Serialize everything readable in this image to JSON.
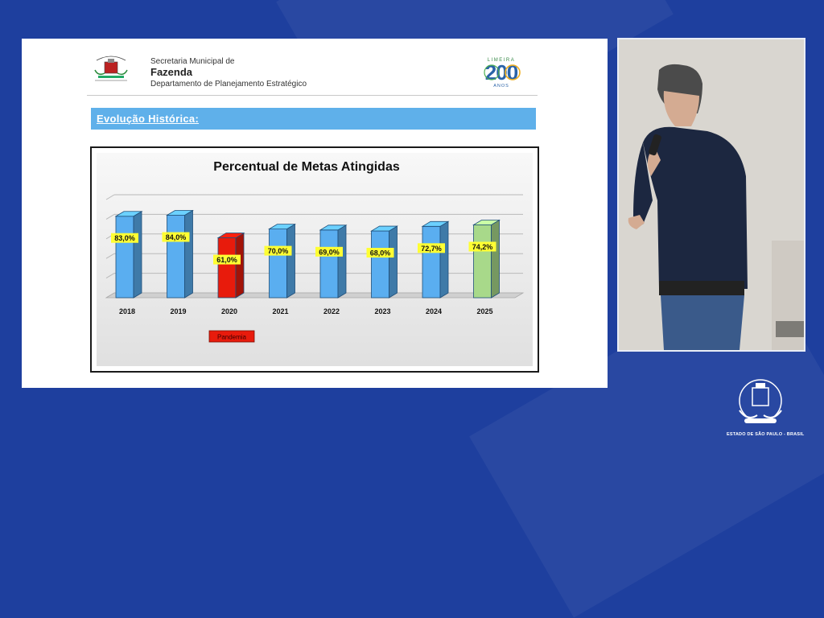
{
  "header": {
    "line1": "Secretaria Municipal de",
    "line2": "Fazenda",
    "line3": "Departamento de Planejamento Estratégico",
    "anniv_top": "LIMEIRA",
    "anniv_number": "200",
    "anniv_bottom": "ANOS"
  },
  "section": {
    "title": "Evolução Histórica:"
  },
  "chart_data": {
    "type": "bar",
    "title": "Percentual de Metas Atingidas",
    "categories": [
      "2018",
      "2019",
      "2020",
      "2021",
      "2022",
      "2023",
      "2024",
      "2025"
    ],
    "values": [
      83.0,
      84.0,
      61.0,
      70.0,
      69.0,
      68.0,
      72.7,
      74.2
    ],
    "value_labels": [
      "83,0%",
      "84,0%",
      "61,0%",
      "70,0%",
      "69,0%",
      "68,0%",
      "72,7%",
      "74,2%"
    ],
    "bar_colors": [
      "#5aaef0",
      "#5aaef0",
      "#e81b0c",
      "#5aaef0",
      "#5aaef0",
      "#5aaef0",
      "#5aaef0",
      "#a8d98a"
    ],
    "annotation": "Pandemia",
    "annotation_category": "2020",
    "annotation_color": "#e81b0c",
    "xlabel": "",
    "ylabel": "",
    "ylim": [
      0,
      100
    ],
    "grid": true,
    "legend": "none"
  },
  "footer": {
    "state_text": "ESTADO DE SÃO PAULO - BRASIL"
  },
  "colors": {
    "background": "#1e3f9e",
    "section_bar": "#5fb0ea",
    "label_bg": "#ffff33"
  }
}
